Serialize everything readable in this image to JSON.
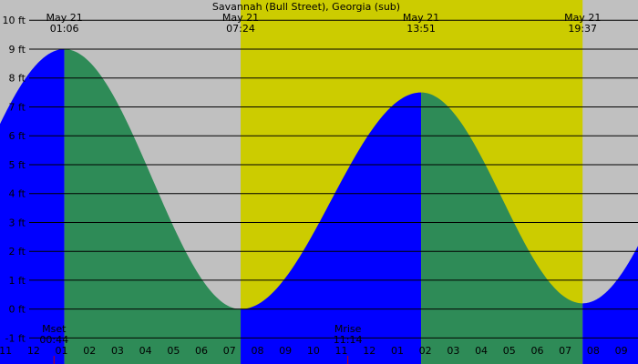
{
  "chart_data": {
    "type": "area",
    "title": "Savannah (Bull Street), Georgia (sub)",
    "y_unit": "ft",
    "ylim": [
      -1.9,
      10.7
    ],
    "y_ticks": [
      {
        "value": 10,
        "label": "10 ft"
      },
      {
        "value": 9,
        "label": "9 ft"
      },
      {
        "value": 8,
        "label": "8 ft"
      },
      {
        "value": 7,
        "label": "7 ft"
      },
      {
        "value": 6,
        "label": "6 ft"
      },
      {
        "value": 5,
        "label": "5 ft"
      },
      {
        "value": 4,
        "label": "4 ft"
      },
      {
        "value": 3,
        "label": "3 ft"
      },
      {
        "value": 2,
        "label": "2 ft"
      },
      {
        "value": 1,
        "label": "1 ft"
      },
      {
        "value": 0,
        "label": "0 ft"
      },
      {
        "value": -1,
        "label": "-1 ft"
      }
    ],
    "xlim_hours": [
      -1.2,
      21.6
    ],
    "x_ticks": [
      {
        "hour": -1,
        "label": "11"
      },
      {
        "hour": 0,
        "label": "12"
      },
      {
        "hour": 1,
        "label": "01"
      },
      {
        "hour": 2,
        "label": "02"
      },
      {
        "hour": 3,
        "label": "03"
      },
      {
        "hour": 4,
        "label": "04"
      },
      {
        "hour": 5,
        "label": "05"
      },
      {
        "hour": 6,
        "label": "06"
      },
      {
        "hour": 7,
        "label": "07"
      },
      {
        "hour": 8,
        "label": "08"
      },
      {
        "hour": 9,
        "label": "09"
      },
      {
        "hour": 10,
        "label": "10"
      },
      {
        "hour": 11,
        "label": "11"
      },
      {
        "hour": 12,
        "label": "12"
      },
      {
        "hour": 13,
        "label": "01"
      },
      {
        "hour": 14,
        "label": "02"
      },
      {
        "hour": 15,
        "label": "03"
      },
      {
        "hour": 16,
        "label": "04"
      },
      {
        "hour": 17,
        "label": "05"
      },
      {
        "hour": 18,
        "label": "06"
      },
      {
        "hour": 19,
        "label": "07"
      },
      {
        "hour": 20,
        "label": "08"
      },
      {
        "hour": 21,
        "label": "09"
      }
    ],
    "daylight": {
      "start_hour": 7.4,
      "end_hour": 19.62
    },
    "tide_extremes": [
      {
        "hour": 1.1,
        "height": 9.0,
        "type": "high",
        "date_label": "May 21",
        "time_label": "01:06"
      },
      {
        "hour": 7.4,
        "height": 0.0,
        "type": "low",
        "date_label": "May 21",
        "time_label": "07:24"
      },
      {
        "hour": 13.85,
        "height": 7.5,
        "type": "high",
        "date_label": "May 21",
        "time_label": "13:51"
      },
      {
        "hour": 19.62,
        "height": 0.2,
        "type": "low",
        "date_label": "May 21",
        "time_label": "19:37"
      }
    ],
    "curve_extension": {
      "before": {
        "hour": -5.2,
        "height": 0.2
      },
      "after": {
        "hour": 25.9,
        "height": 9.0
      }
    },
    "moon_events": [
      {
        "label": "Mset",
        "time_label": "00:44",
        "hour": 0.73
      },
      {
        "label": "Mrise",
        "time_label": "11:14",
        "hour": 11.23
      }
    ],
    "colors": {
      "background": "#c0c0c0",
      "daylight": "#cccc00",
      "rising": "#0000ff",
      "falling": "#2e8b57",
      "gridline": "#000000",
      "moon_marker": "#cc0000"
    }
  }
}
